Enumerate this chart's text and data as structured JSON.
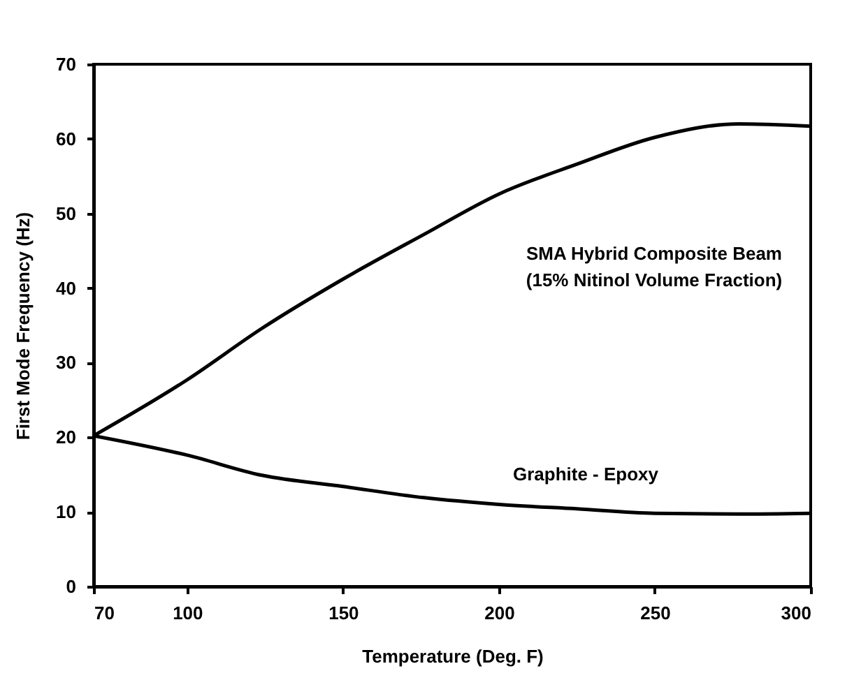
{
  "chart_data": {
    "type": "line",
    "xlabel": "Temperature  (Deg. F)",
    "ylabel": "First Mode Frequency  (Hz)",
    "x": [
      70,
      100,
      124,
      150,
      176,
      200,
      225,
      250,
      277,
      300
    ],
    "series": [
      {
        "color": "#000000",
        "values": [
          20.2,
          27.7,
          34.6,
          41.2,
          47.2,
          52.6,
          56.6,
          60.2,
          62.0,
          61.7
        ]
      },
      {
        "color": "#000000",
        "values": [
          20.2,
          17.6,
          14.9,
          13.4,
          11.9,
          11.0,
          10.4,
          9.8,
          9.7,
          9.8
        ]
      }
    ],
    "annotations": [
      "SMA Hybrid Composite Beam\n(15% Nitinol Volume Fraction)",
      "Graphite - Epoxy"
    ],
    "xlim": [
      70,
      300
    ],
    "xticks": [
      70,
      100,
      150,
      200,
      250,
      300
    ],
    "ylim": [
      0,
      70
    ],
    "yticks": [
      0,
      10,
      20,
      30,
      40,
      50,
      60,
      70
    ],
    "grid": false,
    "legend": false,
    "marker": "none",
    "line_style": "solid"
  }
}
